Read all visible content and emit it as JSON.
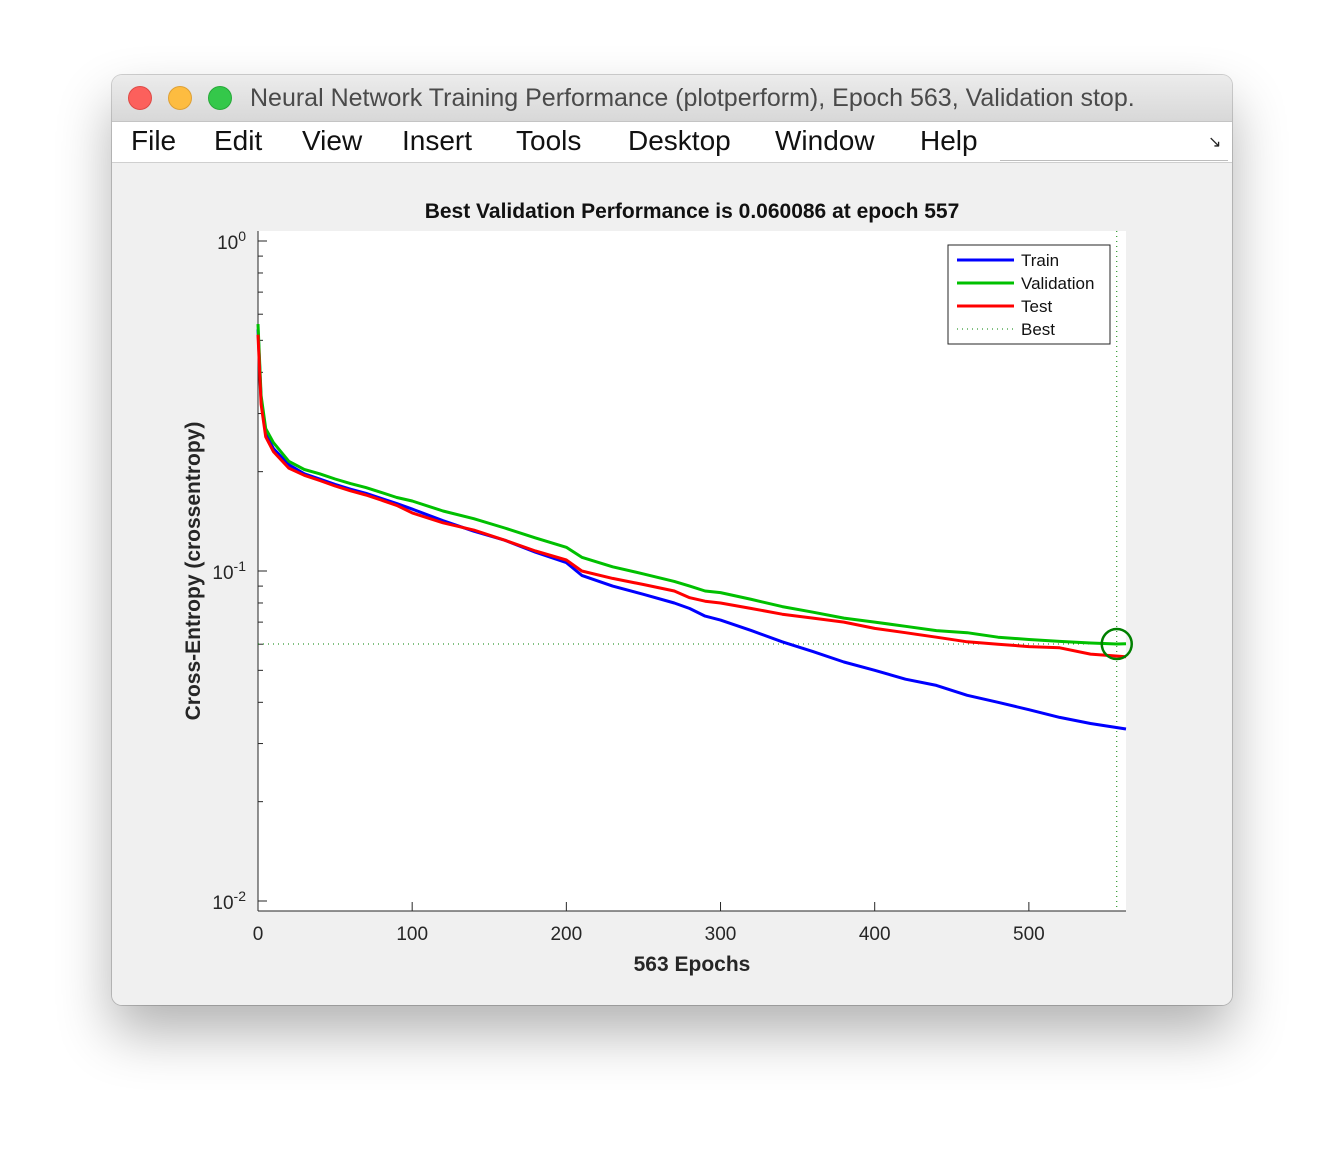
{
  "window": {
    "title": "Neural Network Training Performance (plotperform), Epoch 563, Validation stop."
  },
  "menu": [
    "File",
    "Edit",
    "View",
    "Insert",
    "Tools",
    "Desktop",
    "Window",
    "Help"
  ],
  "colors": {
    "train": "#0000ff",
    "validation": "#00c000",
    "test": "#ff0000",
    "best": "#008000"
  },
  "chart_data": {
    "type": "line",
    "title": "Best Validation Performance is 0.060086 at epoch 557",
    "xlabel": "563 Epochs",
    "ylabel": "Cross-Entropy  (crossentropy)",
    "xlim": [
      0,
      563
    ],
    "ylim": [
      0.01,
      1
    ],
    "yscale": "log",
    "xticks": [
      0,
      100,
      200,
      300,
      400,
      500
    ],
    "xtick_labels": [
      "0",
      "100",
      "200",
      "300",
      "400",
      "500"
    ],
    "yticks": [
      {
        "base": "10",
        "exp": "-2",
        "value": 0.01
      },
      {
        "base": "10",
        "exp": "-1",
        "value": 0.1
      },
      {
        "base": "10",
        "exp": "0",
        "value": 1
      }
    ],
    "grid": false,
    "legend_position": "top-right",
    "best": {
      "epoch": 557,
      "value": 0.060086,
      "label": "Best"
    },
    "series": [
      {
        "name": "Train",
        "color": "#0000ff",
        "x": [
          0,
          2,
          5,
          10,
          20,
          30,
          40,
          50,
          60,
          70,
          80,
          90,
          100,
          120,
          140,
          160,
          180,
          200,
          210,
          230,
          250,
          270,
          280,
          290,
          300,
          320,
          340,
          360,
          380,
          400,
          420,
          440,
          460,
          480,
          500,
          520,
          540,
          563
        ],
        "y": [
          0.54,
          0.33,
          0.26,
          0.235,
          0.21,
          0.197,
          0.19,
          0.183,
          0.177,
          0.172,
          0.166,
          0.16,
          0.154,
          0.142,
          0.132,
          0.124,
          0.114,
          0.106,
          0.097,
          0.09,
          0.085,
          0.08,
          0.077,
          0.073,
          0.071,
          0.066,
          0.061,
          0.057,
          0.053,
          0.05,
          0.047,
          0.045,
          0.042,
          0.04,
          0.038,
          0.036,
          0.0345,
          0.0332
        ]
      },
      {
        "name": "Validation",
        "color": "#00c000",
        "x": [
          0,
          2,
          5,
          10,
          20,
          30,
          40,
          50,
          60,
          70,
          80,
          90,
          100,
          120,
          140,
          160,
          180,
          200,
          210,
          230,
          250,
          270,
          280,
          290,
          300,
          320,
          340,
          360,
          380,
          400,
          420,
          440,
          460,
          480,
          500,
          520,
          540,
          557,
          563
        ],
        "y": [
          0.56,
          0.34,
          0.27,
          0.245,
          0.215,
          0.203,
          0.197,
          0.19,
          0.184,
          0.179,
          0.173,
          0.167,
          0.163,
          0.152,
          0.144,
          0.135,
          0.126,
          0.118,
          0.11,
          0.103,
          0.098,
          0.093,
          0.09,
          0.087,
          0.086,
          0.082,
          0.078,
          0.075,
          0.072,
          0.07,
          0.068,
          0.066,
          0.065,
          0.063,
          0.062,
          0.0612,
          0.0605,
          0.060086,
          0.0602
        ]
      },
      {
        "name": "Test",
        "color": "#ff0000",
        "x": [
          0,
          2,
          5,
          10,
          20,
          30,
          40,
          50,
          60,
          70,
          80,
          90,
          100,
          120,
          140,
          160,
          180,
          200,
          210,
          230,
          250,
          270,
          280,
          290,
          300,
          320,
          340,
          360,
          380,
          400,
          420,
          440,
          460,
          480,
          500,
          520,
          540,
          563
        ],
        "y": [
          0.52,
          0.32,
          0.255,
          0.23,
          0.205,
          0.195,
          0.188,
          0.181,
          0.175,
          0.17,
          0.164,
          0.158,
          0.15,
          0.14,
          0.133,
          0.124,
          0.115,
          0.108,
          0.1,
          0.095,
          0.091,
          0.087,
          0.083,
          0.081,
          0.08,
          0.077,
          0.074,
          0.072,
          0.07,
          0.067,
          0.065,
          0.063,
          0.061,
          0.06,
          0.059,
          0.0585,
          0.056,
          0.055
        ]
      }
    ]
  }
}
